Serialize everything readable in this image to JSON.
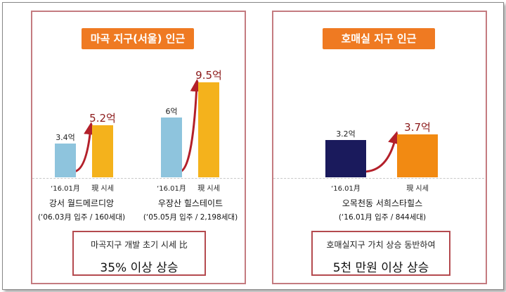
{
  "left_panel": {
    "title": "마곡 지구(서울) 인근",
    "summary": {
      "line1": "마곡지구 개발 초기 시세 比",
      "line2": "35% 이상 상승"
    }
  },
  "right_panel": {
    "title": "호매실 지구 인근",
    "summary": {
      "line1": "호매실지구 가치 상승 동반하여",
      "line2": "5천 만원 이상 상승"
    }
  },
  "chart_data": [
    {
      "type": "bar",
      "title": "마곡 지구(서울) 인근",
      "groups": [
        {
          "name": "강서 월드메르디앙",
          "info": "(‘06.03月 입주 / 160세대)",
          "categories": [
            "‘16.01月",
            "現 시세"
          ],
          "values": [
            3.4,
            5.2
          ],
          "value_labels": [
            "3.4억",
            "5.2억"
          ]
        },
        {
          "name": "우장산 힐스테이트",
          "info": "(‘05.05月 입주 / 2,198세대)",
          "categories": [
            "‘16.01月",
            "現 시세"
          ],
          "values": [
            6,
            9.5
          ],
          "value_labels": [
            "6억",
            "9.5억"
          ]
        }
      ],
      "colors": {
        "before": "#8ec4dd",
        "after": "#f4b21c",
        "highlight_label": "#8b1a1a"
      }
    },
    {
      "type": "bar",
      "title": "호매실 지구 인근",
      "groups": [
        {
          "name": "오목천동 서희스타힐스",
          "info": "(‘16.01月 입주 / 844세대)",
          "categories": [
            "‘16.01月",
            "現 시세"
          ],
          "values": [
            3.2,
            3.7
          ],
          "value_labels": [
            "3.2억",
            "3.7억"
          ]
        }
      ],
      "colors": {
        "before": "#1a1a5c",
        "after": "#f28a12",
        "highlight_label": "#8b1a1a"
      }
    }
  ]
}
